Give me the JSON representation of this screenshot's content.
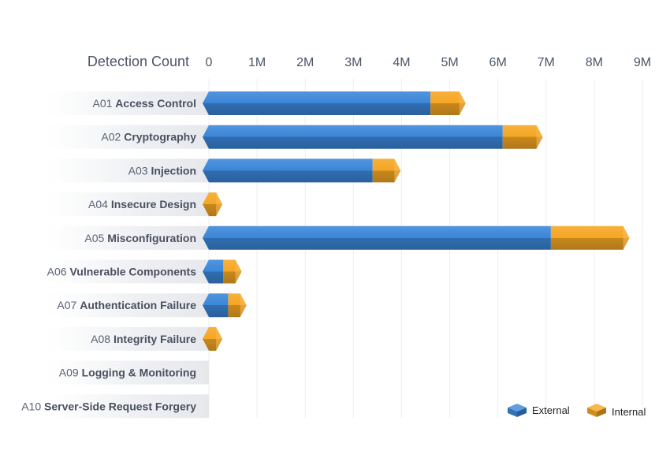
{
  "chart_data": {
    "type": "bar",
    "orientation": "horizontal",
    "stacked": true,
    "axis_title": "Detection Count",
    "x_ticks": [
      "0",
      "1M",
      "2M",
      "3M",
      "4M",
      "5M",
      "6M",
      "7M",
      "8M",
      "9M"
    ],
    "xlim": [
      0,
      9000000
    ],
    "categories": [
      {
        "code": "A01",
        "name": "Access Control"
      },
      {
        "code": "A02",
        "name": "Cryptography"
      },
      {
        "code": "A03",
        "name": "Injection"
      },
      {
        "code": "A04",
        "name": "Insecure Design"
      },
      {
        "code": "A05",
        "name": "Misconfiguration"
      },
      {
        "code": "A06",
        "name": "Vulnerable Components"
      },
      {
        "code": "A07",
        "name": "Authentication Failure"
      },
      {
        "code": "A08",
        "name": "Integrity Failure"
      },
      {
        "code": "A09",
        "name": "Logging & Monitoring"
      },
      {
        "code": "A10",
        "name": "Server-Side Request Forgery"
      }
    ],
    "series": [
      {
        "name": "External",
        "color": "#3a86d8",
        "values": [
          4600000,
          6100000,
          3400000,
          0,
          7100000,
          300000,
          400000,
          0,
          0,
          0
        ]
      },
      {
        "name": "Internal",
        "color": "#f5a623",
        "values": [
          600000,
          700000,
          450000,
          150000,
          1500000,
          250000,
          250000,
          150000,
          0,
          0
        ]
      }
    ],
    "legend_position": "bottom-right"
  }
}
